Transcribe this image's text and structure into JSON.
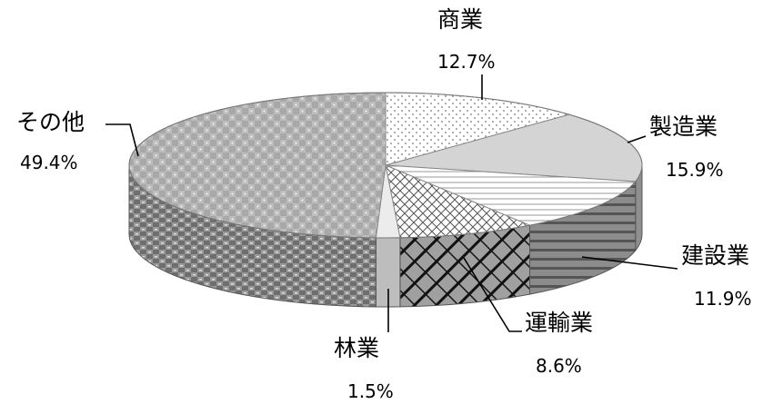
{
  "chart_data": {
    "type": "pie",
    "style": "3d",
    "slices": [
      {
        "label": "商業",
        "value": 12.7,
        "display": "12.7%",
        "pattern": "dots"
      },
      {
        "label": "製造業",
        "value": 15.9,
        "display": "15.9%",
        "pattern": "solid-light"
      },
      {
        "label": "建設業",
        "value": 11.9,
        "display": "11.9%",
        "pattern": "horizontal-lines"
      },
      {
        "label": "運輸業",
        "value": 8.6,
        "display": "8.6%",
        "pattern": "crosshatch"
      },
      {
        "label": "林業",
        "value": 1.5,
        "display": "1.5%",
        "pattern": "plain"
      },
      {
        "label": "その他",
        "value": 49.4,
        "display": "49.4%",
        "pattern": "plaid"
      }
    ],
    "legend": "none",
    "labels": "outside with leader lines"
  }
}
